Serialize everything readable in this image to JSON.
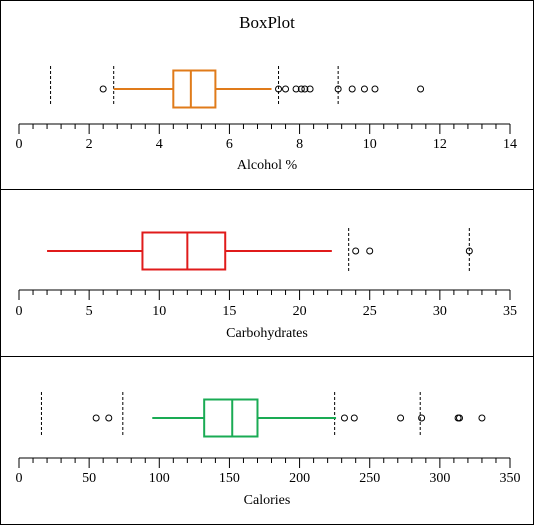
{
  "title": "BoxPlot",
  "chart_data": [
    {
      "type": "boxplot",
      "xlabel": "Alcohol  %",
      "xlim": [
        0,
        14
      ],
      "ticks": [
        0,
        2,
        4,
        6,
        8,
        10,
        12,
        14
      ],
      "color": "#e07b1a",
      "whisker_low": 2.7,
      "q1": 4.4,
      "median": 4.9,
      "q3": 5.6,
      "whisker_high": 7.2,
      "outliers": [
        2.4,
        7.4,
        7.6,
        7.9,
        8.05,
        8.15,
        8.3,
        9.1,
        9.5,
        9.85,
        10.15,
        11.45
      ],
      "reference_lines": [
        0.9,
        2.7,
        7.4,
        9.1
      ]
    },
    {
      "type": "boxplot",
      "xlabel": "Carbohydrates",
      "xlim": [
        0,
        35
      ],
      "ticks": [
        0,
        5,
        10,
        15,
        20,
        25,
        30,
        35
      ],
      "color": "#e01b1b",
      "whisker_low": 2.0,
      "q1": 8.8,
      "median": 12.0,
      "q3": 14.7,
      "whisker_high": 22.3,
      "outliers": [
        24.0,
        25.0,
        32.1
      ],
      "reference_lines": [
        23.5,
        32.1
      ]
    },
    {
      "type": "boxplot",
      "xlabel": "Calories",
      "xlim": [
        0,
        350
      ],
      "ticks": [
        0,
        50,
        100,
        150,
        200,
        250,
        300,
        350
      ],
      "color": "#1aab54",
      "whisker_low": 95,
      "q1": 132,
      "median": 152,
      "q3": 170,
      "whisker_high": 226,
      "outliers": [
        55,
        64,
        232,
        239,
        272,
        287,
        313,
        314,
        330
      ],
      "reference_lines": [
        16,
        74,
        225,
        286
      ]
    }
  ]
}
